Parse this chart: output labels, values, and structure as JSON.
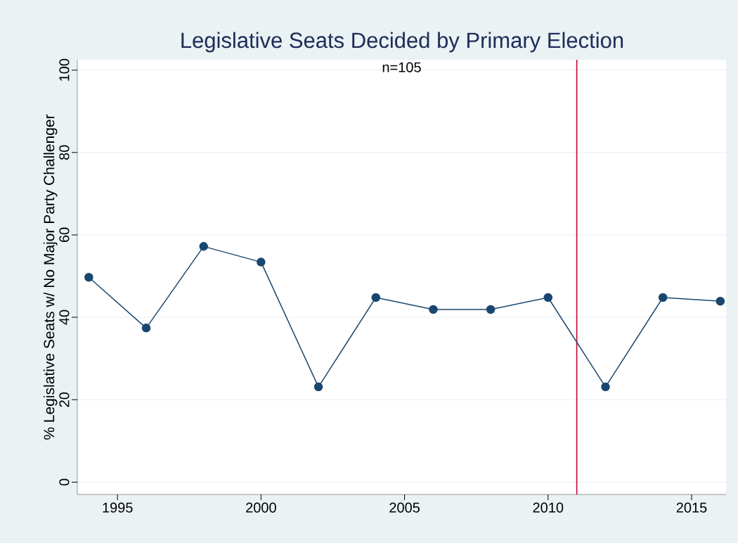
{
  "chart_data": {
    "type": "line",
    "title": "Legislative Seats Decided by Primary Election",
    "subtitle": "n=105",
    "ylabel": "% Legislative Seats w/ No Major Party Challenger",
    "x": [
      1994,
      1996,
      1998,
      2000,
      2002,
      2004,
      2006,
      2008,
      2010,
      2012,
      2014,
      2016
    ],
    "series": [
      {
        "color": "#1a476f",
        "values": [
          49.7,
          37.4,
          57.2,
          53.4,
          23.1,
          44.8,
          41.9,
          41.9,
          44.8,
          23.1,
          44.8,
          43.9
        ]
      }
    ],
    "xlim": [
      1993.6,
      2016.2
    ],
    "xticks": [
      1995,
      2000,
      2005,
      2010,
      2015
    ],
    "ylim": [
      -3,
      102.5
    ],
    "yticks": [
      0,
      20,
      40,
      60,
      80,
      100
    ],
    "ref_lines": [
      {
        "axis": "x",
        "value": 2011,
        "color": "#c10534"
      }
    ],
    "grid": "y",
    "marker": "circle",
    "line_style": "solid"
  }
}
